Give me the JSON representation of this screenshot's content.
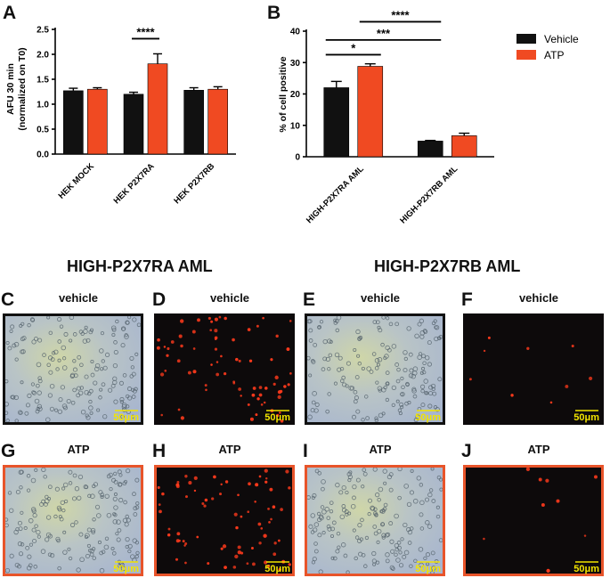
{
  "colors": {
    "vehicle": "#111111",
    "atp": "#f04a22",
    "frame_vehicle": "#111111",
    "frame_atp": "#e8542a",
    "scale_bar": "#f2e400"
  },
  "chart_data": [
    {
      "panel": "A",
      "type": "bar",
      "ylabel_line1": "AFU 30 min",
      "ylabel_line2": "(normalized on T0)",
      "ylim": [
        0,
        2.5
      ],
      "yticks": [
        "0.0",
        "0.5",
        "1.0",
        "1.5",
        "2.0",
        "2.5"
      ],
      "categories": [
        "HEK MOCK",
        "HEK P2X7RA",
        "HEK P2X7RB"
      ],
      "series": [
        {
          "name": "Vehicle",
          "values": [
            1.27,
            1.2,
            1.28
          ],
          "errors": [
            0.05,
            0.04,
            0.05
          ]
        },
        {
          "name": "ATP",
          "values": [
            1.3,
            1.81,
            1.3
          ],
          "errors": [
            0.03,
            0.2,
            0.05
          ]
        }
      ],
      "significance": [
        {
          "label": "****",
          "category_index": 1
        }
      ]
    },
    {
      "panel": "B",
      "type": "bar",
      "ylabel": "% of cell positive",
      "ylim": [
        0,
        40
      ],
      "yticks": [
        "0",
        "10",
        "20",
        "30",
        "40"
      ],
      "categories": [
        "HIGH-P2X7RA AML",
        "HIGH-P2X7RB AML"
      ],
      "series": [
        {
          "name": "Vehicle",
          "values": [
            22.0,
            5.0
          ],
          "errors": [
            2.0,
            0.2
          ]
        },
        {
          "name": "ATP",
          "values": [
            28.8,
            6.7
          ],
          "errors": [
            0.8,
            0.8
          ]
        }
      ],
      "significance": [
        {
          "label": "*",
          "from": "A-Vehicle",
          "to": "A-ATP"
        },
        {
          "label": "***",
          "from": "A-Vehicle",
          "to": "B-Vehicle"
        },
        {
          "label": "****",
          "from": "A-ATP",
          "to": "B-Vehicle"
        }
      ],
      "legend": [
        "Vehicle",
        "ATP"
      ],
      "legend_position": "right"
    }
  ],
  "panel_letters": {
    "a": "A",
    "b": "B"
  },
  "section_titles": {
    "left": "HIGH-P2X7RA AML",
    "right": "HIGH-P2X7RB AML"
  },
  "micrographs": {
    "scale_label": "50μm",
    "panels": [
      {
        "letter": "C",
        "label": "vehicle",
        "kind": "bright",
        "frame": "vehicle"
      },
      {
        "letter": "D",
        "label": "vehicle",
        "kind": "fluor_dense",
        "frame": "none"
      },
      {
        "letter": "E",
        "label": "vehicle",
        "kind": "bright",
        "frame": "vehicle"
      },
      {
        "letter": "F",
        "label": "vehicle",
        "kind": "fluor_sparse",
        "frame": "none"
      },
      {
        "letter": "G",
        "label": "ATP",
        "kind": "bright",
        "frame": "atp"
      },
      {
        "letter": "H",
        "label": "ATP",
        "kind": "fluor_dense",
        "frame": "atp"
      },
      {
        "letter": "I",
        "label": "ATP",
        "kind": "bright",
        "frame": "atp"
      },
      {
        "letter": "J",
        "label": "ATP",
        "kind": "fluor_sparse",
        "frame": "atp"
      }
    ]
  }
}
